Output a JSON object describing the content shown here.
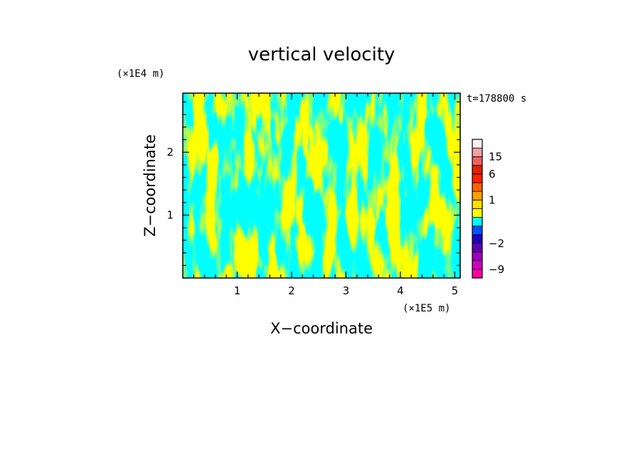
{
  "chart_data": {
    "type": "heatmap",
    "title": "vertical velocity",
    "xlabel": "X−coordinate",
    "ylabel": "Z−coordinate",
    "x_unit": "(×1E5 m)",
    "y_unit": "(×1E4 m)",
    "time_label": "t=178800 s",
    "xlim": [
      0,
      5.1
    ],
    "ylim": [
      0,
      2.94
    ],
    "x_ticks": [
      1,
      2,
      3,
      4,
      5
    ],
    "x_tick_labels": [
      "1",
      "2",
      "3",
      "4",
      "5"
    ],
    "y_ticks": [
      1,
      2
    ],
    "y_tick_labels": [
      "1",
      "2"
    ],
    "field_colors": {
      "positive": "#ffff00",
      "negative": "#00ffff"
    },
    "field_note": "two-tone contour field: yellow = positive, cyan = negative vertical velocity",
    "colorbar": {
      "levels": [
        -12,
        -9,
        -6,
        -4,
        -2,
        -1,
        -0.5,
        0,
        0.5,
        1,
        2,
        4,
        6,
        10,
        15,
        20,
        25
      ],
      "colors": [
        "#ff00a0",
        "#d000c0",
        "#a000c0",
        "#6000b0",
        "#2000c0",
        "#0050ff",
        "#00ffff",
        "#ffff00",
        "#ffe000",
        "#ffa000",
        "#ff6000",
        "#ff2000",
        "#e02000",
        "#f06060",
        "#f0a0a0",
        "#fff0f0"
      ],
      "tick_values": [
        -9,
        -2,
        1,
        6,
        15
      ],
      "tick_labels": [
        "−9",
        "−2",
        "1",
        "6",
        "15"
      ]
    }
  }
}
